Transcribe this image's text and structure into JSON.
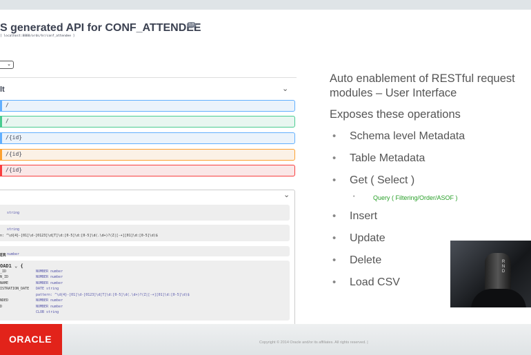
{
  "swagger": {
    "title": "S generated API for CONF_ATTENDEE",
    "version": "1.0",
    "url": "[ localhost:8888/ords/hr/conf_attendee ]",
    "section": "lt",
    "operations": [
      {
        "path": "/",
        "color": "#61affe",
        "bg": "#ebf3fb"
      },
      {
        "path": "/",
        "color": "#49cc90",
        "bg": "#e8f6f0"
      },
      {
        "path": "/{id}",
        "color": "#61affe",
        "bg": "#ebf3fb"
      },
      {
        "path": "/{id}",
        "color": "#fca130",
        "bg": "#fbf1e6"
      },
      {
        "path": "/{id}",
        "color": "#f93e3e",
        "bg": "#fae7e7"
      }
    ],
    "models": [
      {
        "lines": [
          [
            "",
            "string"
          ]
        ]
      },
      {
        "lines": [
          [
            "",
            "string"
          ],
          [
            "n: ^\\d{4}-[01]\\d-[0123]\\d[T]\\d:[0-5]\\d:[0-5]\\d(.\\d+)?(Z|[-+][01]\\d:[0-5]\\d)$",
            ""
          ]
        ]
      },
      {
        "lines": [
          [
            "ER",
            "number"
          ]
        ]
      },
      {
        "lines": [
          [
            "OAD1 ⌄ {",
            ""
          ],
          [
            "_ID",
            "NUMBER number"
          ],
          [
            "N_ID",
            "NUMBER number"
          ],
          [
            "NAME",
            "NUMBER number"
          ],
          [
            "ISTRATION_DATE",
            "DATE string"
          ],
          [
            "",
            "pattern: ^\\d{4}-[01]\\d-[0123]\\d[T]\\d:[0-5]\\d(.\\d+)?(Z|[-+][01]\\d:[0-5]\\d)$"
          ],
          [
            "NDED",
            "NUMBER number"
          ],
          [
            "D",
            "NUMBER number"
          ],
          [
            "",
            "CLOB string"
          ]
        ]
      }
    ]
  },
  "slide": {
    "heading": "Auto enablement of RESTful request modules – User Interface",
    "subheading": "Exposes these operations",
    "bullets": [
      "Schema level Metadata",
      "Table Metadata",
      "Get ( Select )",
      "Insert",
      "Update",
      "Delete",
      "Load CSV"
    ],
    "sub_bullet": "Query ( Filtering/Order/ASOF )"
  },
  "footer": {
    "logo": "ORACLE",
    "copyright": "Copyright © 2014 Oracle and/or its affiliates. All rights reserved.  |"
  }
}
